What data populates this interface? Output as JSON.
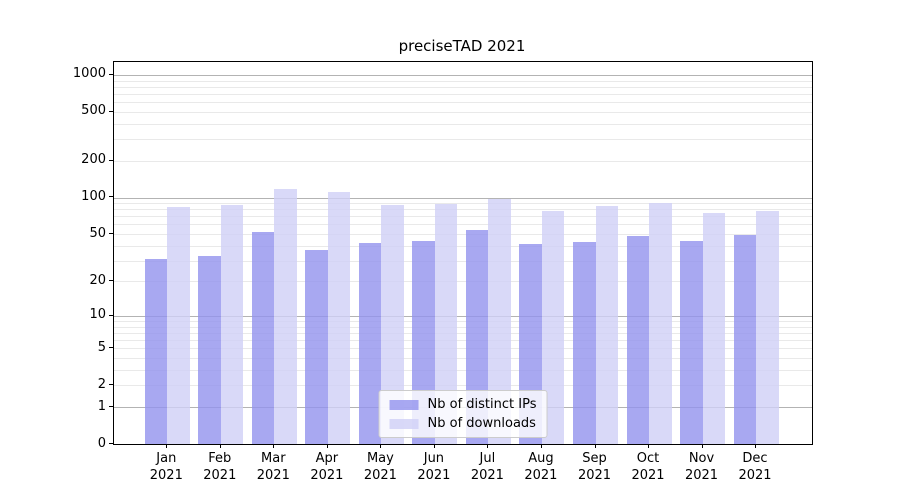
{
  "window": {
    "background": "#ffffff"
  },
  "chart_data": {
    "type": "bar",
    "title": "preciseTAD 2021",
    "categories": [
      "Jan 2021",
      "Feb 2021",
      "Mar 2021",
      "Apr 2021",
      "May 2021",
      "Jun 2021",
      "Jul 2021",
      "Aug 2021",
      "Sep 2021",
      "Oct 2021",
      "Nov 2021",
      "Dec 2021"
    ],
    "series": [
      {
        "name": "Nb of distinct IPs",
        "color": "#9292ee",
        "values": [
          31,
          33,
          52,
          37,
          42,
          44,
          54,
          41,
          43,
          48,
          44,
          49
        ]
      },
      {
        "name": "Nb of downloads",
        "color": "#d0d0f6",
        "values": [
          84,
          86,
          118,
          111,
          86,
          88,
          98,
          78,
          85,
          91,
          74,
          78
        ]
      }
    ],
    "xlabel": "",
    "ylabel": "",
    "yscale": "log1p",
    "ylim": [
      0,
      1290
    ],
    "yticks": [
      0,
      1,
      2,
      5,
      10,
      20,
      50,
      100,
      200,
      500,
      1000
    ],
    "grid": "horizontal major and minor gridlines",
    "legend_position": "lower center inside plot",
    "bar_opacity": 0.8,
    "major_grid_color": "#b3b3b3",
    "minor_grid_color": "#e9e9e9",
    "spine_color": "#000000"
  }
}
